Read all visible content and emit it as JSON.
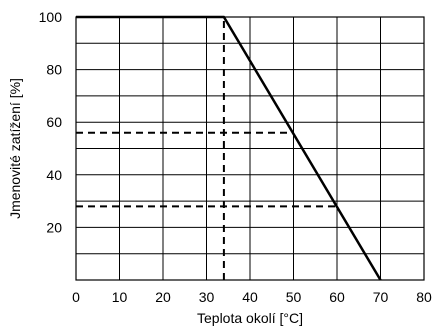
{
  "chart_data": {
    "type": "line",
    "xlabel": "Teplota okolí [°C]",
    "ylabel": "Jmenovité zatížení [%]",
    "xlim": [
      0,
      80
    ],
    "ylim": [
      0,
      100
    ],
    "x_ticks": [
      0,
      10,
      20,
      30,
      40,
      50,
      60,
      70,
      80
    ],
    "y_ticks": [
      20,
      40,
      60,
      80,
      100
    ],
    "x_tick_labels": [
      "0",
      "10",
      "20",
      "30",
      "40",
      "50",
      "60",
      "70",
      "80"
    ],
    "y_tick_labels": [
      "20",
      "40",
      "60",
      "80",
      "100"
    ],
    "grid": true,
    "grid_x_step": 10,
    "grid_y_step": 10,
    "series": [
      {
        "color": "#000000",
        "style": "solid",
        "x": [
          0,
          34,
          70
        ],
        "y": [
          100,
          100,
          0
        ]
      }
    ],
    "reference_lines": [
      {
        "style": "dashed",
        "x": [
          34,
          34
        ],
        "y": [
          0,
          100
        ]
      },
      {
        "style": "dashed",
        "x": [
          0,
          50
        ],
        "y": [
          56,
          56
        ]
      },
      {
        "style": "dashed",
        "x": [
          0,
          60
        ],
        "y": [
          28,
          28
        ]
      }
    ]
  }
}
